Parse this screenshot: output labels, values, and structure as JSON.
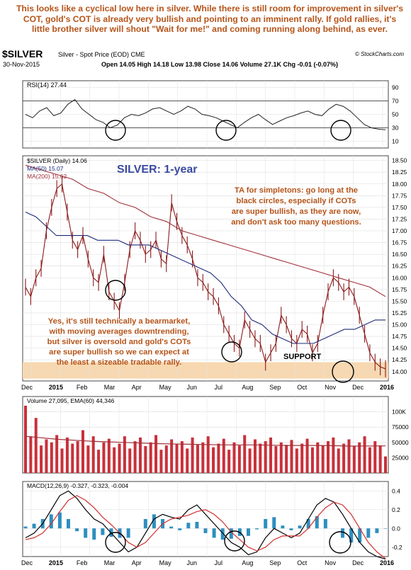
{
  "annotations": {
    "top": "This looks like a cyclical low here in silver. While there is still room for improvement in silver's COT, gold's COT is already very bullish and pointing to an imminent rally. If gold rallies, it's little brother silver will shout \"Wait for me!\" and coming running along behind, as ever.",
    "title": "SILVER: 1-year",
    "right": [
      "TA for simpletons: go long at the",
      "black circles, especially if COTs",
      "are super bullish, as they are now,",
      "and don't ask too many questions."
    ],
    "left": [
      "Yes, it's still technically a bearmarket,",
      "with moving averages downtrending,",
      "but silver is oversold and gold's COTs",
      "are super bullish so we can expect at",
      "the least a sizeable tradable rally."
    ],
    "support": "SUPPORT"
  },
  "header": {
    "symbol": "$SILVER",
    "description": "Silver - Spot Price (EOD) CME",
    "date": "30-Nov-2015",
    "ohlc": "Open 14.05  High 14.18  Low 13.98  Close 14.06  Volume 27.1K  Chg -0.01 (-0.07%)",
    "copyright": "© StockCharts.com"
  },
  "colors": {
    "price": "#8b1a1a",
    "ma50": "#1c2a78",
    "ma200": "#a0303a",
    "volume": "#c8303a",
    "ema": "#a0303a",
    "histogram": "#2e8fbf",
    "support_band": "#f7d8b0",
    "annotation": "#b5541a",
    "title": "#3a4aa0"
  },
  "chart_data": [
    {
      "type": "line",
      "name": "RSI panel",
      "legend": "RSI(14) 27.44",
      "ylim": [
        0,
        100
      ],
      "yticks": [
        10,
        30,
        50,
        70,
        90
      ],
      "reference_lines": [
        30,
        70
      ],
      "values": [
        50,
        45,
        55,
        60,
        48,
        52,
        65,
        72,
        58,
        50,
        42,
        38,
        30,
        34,
        45,
        50,
        48,
        52,
        58,
        60,
        55,
        50,
        55,
        62,
        58,
        50,
        48,
        45,
        40,
        35,
        30,
        38,
        45,
        50,
        42,
        35,
        40,
        45,
        48,
        52,
        55,
        50,
        48,
        58,
        65,
        62,
        55,
        45,
        35,
        30,
        28,
        27
      ]
    },
    {
      "type": "line",
      "name": "Price panel",
      "legend": [
        "$SILVER (Daily) 14.06",
        "MA(50) 15.07",
        "MA(200) 15.62"
      ],
      "ylim": [
        13.8,
        18.6
      ],
      "yticks": [
        14.0,
        14.25,
        14.5,
        14.75,
        15.0,
        15.25,
        15.5,
        15.75,
        16.0,
        16.25,
        16.5,
        16.75,
        17.0,
        17.25,
        17.5,
        17.75,
        18.0,
        18.25,
        18.5
      ],
      "x_labels": [
        "Dec",
        "2015",
        "Feb",
        "Mar",
        "Apr",
        "May",
        "Jun",
        "Jul",
        "Aug",
        "Sep",
        "Oct",
        "Nov",
        "Dec",
        "2016"
      ],
      "support_band": [
        13.85,
        14.2
      ],
      "close": [
        15.8,
        15.6,
        16.0,
        16.2,
        17.0,
        17.5,
        17.9,
        18.0,
        17.4,
        16.8,
        16.6,
        16.9,
        16.4,
        16.0,
        15.9,
        16.5,
        15.7,
        15.5,
        15.3,
        15.9,
        16.6,
        17.0,
        16.8,
        16.5,
        16.6,
        16.8,
        16.4,
        16.3,
        17.6,
        17.2,
        16.9,
        16.7,
        16.4,
        16.0,
        15.9,
        15.7,
        15.6,
        15.4,
        15.0,
        14.8,
        14.6,
        14.5,
        15.1,
        14.9,
        14.7,
        14.6,
        14.2,
        14.4,
        14.6,
        15.2,
        15.0,
        14.7,
        14.6,
        14.9,
        14.8,
        14.4,
        14.6,
        15.2,
        15.7,
        16.0,
        15.9,
        15.7,
        15.8,
        15.6,
        15.2,
        14.8,
        14.4,
        14.2,
        14.1,
        14.06
      ],
      "ma50": [
        17.4,
        17.3,
        17.1,
        16.9,
        16.9,
        16.9,
        16.9,
        16.8,
        16.8,
        16.8,
        16.7,
        16.7,
        16.7,
        16.6,
        16.5,
        16.4,
        16.3,
        16.2,
        16.1,
        15.9,
        15.6,
        15.4,
        15.1,
        15.0,
        14.8,
        14.7,
        14.6,
        14.6,
        14.6,
        14.7,
        14.8,
        14.9,
        14.9,
        15.0,
        15.1,
        15.1
      ],
      "ma200": [
        18.4,
        18.3,
        18.2,
        18.1,
        17.9,
        17.8,
        17.6,
        17.5,
        17.3,
        17.2,
        17.0,
        16.9,
        16.8,
        16.7,
        16.6,
        16.5,
        16.4,
        16.3,
        16.2,
        16.1,
        16.0,
        15.9,
        15.8,
        15.6
      ]
    },
    {
      "type": "bar",
      "name": "Volume panel",
      "legend": "Volume 27,095, EMA(60) 44,346",
      "ylim": [
        0,
        125000
      ],
      "yticks": [
        25000,
        50000,
        75000,
        100000
      ],
      "ytick_labels": [
        "25000",
        "50000",
        "75000",
        "100K"
      ],
      "values": [
        110000,
        60000,
        90000,
        45000,
        55000,
        50000,
        62000,
        40000,
        58000,
        48000,
        52000,
        70000,
        45000,
        60000,
        38000,
        50000,
        56000,
        42000,
        48000,
        60000,
        40000,
        52000,
        58000,
        44000,
        50000,
        62000,
        38000,
        45000,
        55000,
        48000,
        52000,
        40000,
        58000,
        46000,
        50000,
        60000,
        42000,
        48000,
        56000,
        38000,
        50000,
        45000,
        62000,
        40000,
        55000,
        48000,
        52000,
        58000,
        44000,
        50000,
        46000,
        54000,
        40000,
        48000,
        56000,
        42000,
        50000,
        45000,
        52000,
        58000,
        40000,
        48000,
        55000,
        44000,
        50000,
        60000,
        42000,
        52000,
        45000,
        27095
      ],
      "ema": [
        60000,
        55000,
        52000,
        50000,
        48000,
        47000,
        46000,
        46000,
        45000,
        45000,
        44000,
        44346
      ]
    },
    {
      "type": "line",
      "name": "MACD panel",
      "legend": "MACD(12,26,9) -0.327, -0.323, -0.004",
      "ylim": [
        -0.3,
        0.5
      ],
      "yticks": [
        -0.2,
        0.0,
        0.2,
        0.4
      ],
      "macd": [
        -0.1,
        -0.05,
        0.05,
        0.2,
        0.35,
        0.4,
        0.32,
        0.2,
        0.1,
        0.05,
        -0.05,
        -0.15,
        -0.25,
        -0.2,
        -0.05,
        0.1,
        0.15,
        0.12,
        0.1,
        0.2,
        0.25,
        0.15,
        0.05,
        -0.05,
        -0.15,
        -0.2,
        -0.28,
        -0.25,
        -0.1,
        0.0,
        -0.05,
        -0.1,
        -0.05,
        0.1,
        0.25,
        0.32,
        0.28,
        0.15,
        0.0,
        -0.15,
        -0.25,
        -0.3,
        -0.327
      ],
      "signal": [
        -0.12,
        -0.1,
        -0.05,
        0.05,
        0.18,
        0.3,
        0.35,
        0.3,
        0.22,
        0.12,
        0.04,
        -0.05,
        -0.15,
        -0.2,
        -0.15,
        -0.05,
        0.05,
        0.1,
        0.12,
        0.14,
        0.18,
        0.2,
        0.15,
        0.07,
        -0.04,
        -0.12,
        -0.2,
        -0.24,
        -0.2,
        -0.12,
        -0.08,
        -0.08,
        -0.08,
        0.0,
        0.12,
        0.22,
        0.28,
        0.25,
        0.15,
        0.0,
        -0.15,
        -0.25,
        -0.323
      ],
      "histogram": [
        0.02,
        0.05,
        0.1,
        0.15,
        0.17,
        0.1,
        -0.03,
        -0.1,
        -0.12,
        -0.07,
        -0.09,
        -0.1,
        -0.1,
        0.0,
        0.1,
        0.15,
        0.1,
        0.02,
        -0.02,
        0.06,
        0.07,
        -0.05,
        -0.1,
        -0.12,
        -0.11,
        -0.08,
        -0.08,
        -0.01,
        0.1,
        0.12,
        0.03,
        -0.02,
        0.03,
        0.1,
        0.13,
        0.1,
        0.0,
        -0.1,
        -0.15,
        -0.15,
        -0.1,
        -0.05,
        -0.004
      ]
    }
  ]
}
